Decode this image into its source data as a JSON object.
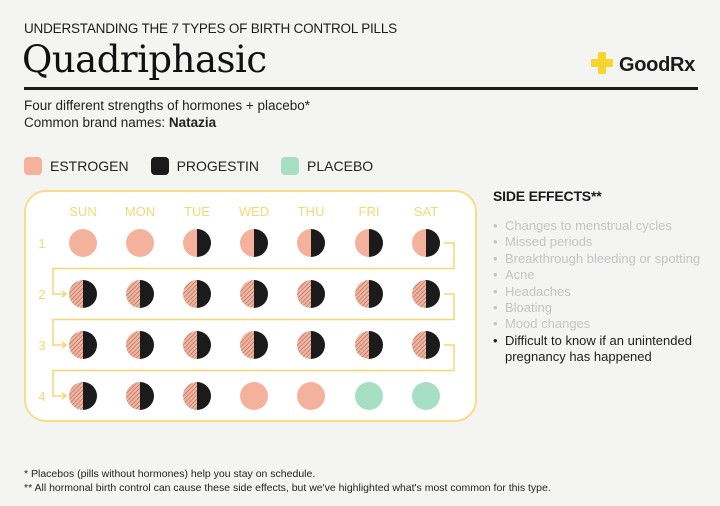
{
  "header": {
    "eyebrow": "UNDERSTANDING THE 7 TYPES OF BIRTH CONTROL PILLS",
    "title": "Quadriphasic",
    "logo": {
      "icon": "plus-cross-icon",
      "name": "GoodRx",
      "icon_color": "#f6d52e"
    }
  },
  "description": {
    "line1": "Four different strengths of hormones + placebo*",
    "brands_label": "Common brand names: ",
    "brands_value": "Natazia"
  },
  "legend": [
    {
      "label": "ESTROGEN",
      "color": "#f4b29c"
    },
    {
      "label": "PROGESTIN",
      "color": "#1b1b1b"
    },
    {
      "label": "PLACEBO",
      "color": "#a6dfc4"
    }
  ],
  "calendar": {
    "days": [
      "SUN",
      "MON",
      "TUE",
      "WED",
      "THU",
      "FRI",
      "SAT"
    ],
    "weeks": [
      "1",
      "2",
      "3",
      "4"
    ],
    "accent": "#f5d777",
    "pill_types_legend": {
      "E": "estrogen only",
      "EP": "estrogen + progestin (split)",
      "HP": "hatched estrogen + progestin (split)",
      "P0": "placebo"
    },
    "pills": [
      [
        "E",
        "E",
        "EP",
        "EP",
        "EP",
        "EP",
        "EP"
      ],
      [
        "HP",
        "HP",
        "HP",
        "HP",
        "HP",
        "HP",
        "HP"
      ],
      [
        "HP",
        "HP",
        "HP",
        "HP",
        "HP",
        "HP",
        "HP"
      ],
      [
        "HP",
        "HP",
        "HP",
        "E",
        "E",
        "P0",
        "P0"
      ]
    ]
  },
  "side_effects": {
    "title": "SIDE EFFECTS**",
    "items": [
      {
        "text": "Changes to menstrual cycles",
        "highlight": false
      },
      {
        "text": "Missed periods",
        "highlight": false
      },
      {
        "text": "Breakthrough bleeding or spotting",
        "highlight": false
      },
      {
        "text": "Acne",
        "highlight": false
      },
      {
        "text": "Headaches",
        "highlight": false
      },
      {
        "text": "Bloating",
        "highlight": false
      },
      {
        "text": "Mood changes",
        "highlight": false
      },
      {
        "text": "Difficult to know if an unintended pregnancy has happened",
        "highlight": true
      }
    ]
  },
  "footnotes": {
    "note1": "* Placebos (pills without hormones) help you stay on schedule.",
    "note2": "** All hormonal birth control can cause these side effects, but we've highlighted what's most common for this type."
  }
}
